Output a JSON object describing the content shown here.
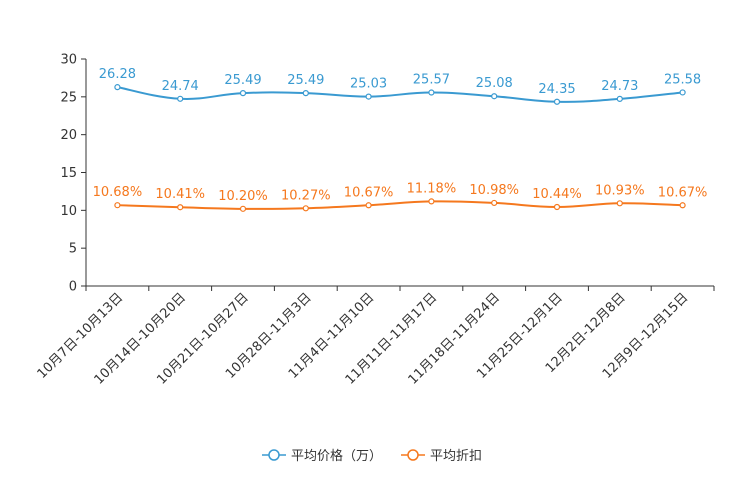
{
  "chart_data": {
    "type": "line",
    "categories": [
      "10月7日-10月13日",
      "10月14日-10月20日",
      "10月21日-10月27日",
      "10月28日-11月3日",
      "11月4日-11月10日",
      "11月11日-11月17日",
      "11月18日-11月24日",
      "11月25日-12月1日",
      "12月2日-12月8日",
      "12月9日-12月15日"
    ],
    "ylim": [
      0,
      30
    ],
    "yticks": [
      0,
      5,
      10,
      15,
      20,
      25,
      30
    ],
    "series": [
      {
        "name": "平均价格（万）",
        "color": "#3a9ad1",
        "values": [
          26.28,
          24.74,
          25.49,
          25.49,
          25.03,
          25.57,
          25.08,
          24.35,
          24.73,
          25.58
        ],
        "labels": [
          "26.28",
          "24.74",
          "25.49",
          "25.49",
          "25.03",
          "25.57",
          "25.08",
          "24.35",
          "24.73",
          "25.58"
        ]
      },
      {
        "name": "平均折扣",
        "color": "#f5781e",
        "values": [
          10.68,
          10.41,
          10.2,
          10.27,
          10.67,
          11.18,
          10.98,
          10.44,
          10.93,
          10.67
        ],
        "labels": [
          "10.68%",
          "10.41%",
          "10.20%",
          "10.27%",
          "10.67%",
          "11.18%",
          "10.98%",
          "10.44%",
          "10.93%",
          "10.67%"
        ]
      }
    ],
    "legend_position": "bottom-center",
    "title": "",
    "xlabel": "",
    "ylabel": ""
  }
}
